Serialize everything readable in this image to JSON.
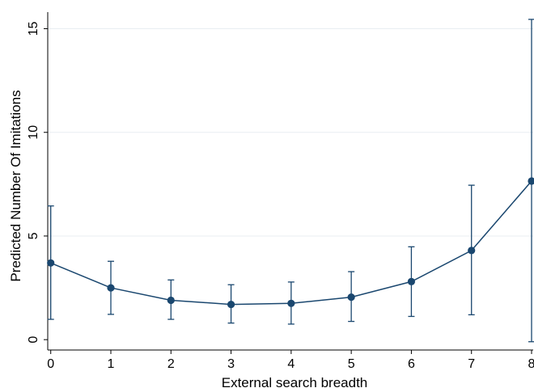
{
  "chart_data": {
    "type": "line",
    "xlabel": "External search breadth",
    "ylabel": "Predicted Number Of Imitations",
    "x": [
      0,
      1,
      2,
      3,
      4,
      5,
      6,
      7,
      8
    ],
    "xticks": [
      0,
      1,
      2,
      3,
      4,
      5,
      6,
      7,
      8
    ],
    "yticks": [
      0,
      5,
      10,
      15
    ],
    "xlim": [
      -0.05,
      8
    ],
    "ylim": [
      -0.5,
      15.8
    ],
    "grid": true,
    "series": [
      {
        "values": [
          3.7,
          2.5,
          1.9,
          1.7,
          1.75,
          2.05,
          2.8,
          4.3,
          7.65
        ],
        "lower": [
          0.98,
          1.22,
          0.98,
          0.8,
          0.75,
          0.88,
          1.12,
          1.2,
          -0.1
        ],
        "upper": [
          6.45,
          3.78,
          2.88,
          2.65,
          2.78,
          3.28,
          4.48,
          7.45,
          15.45
        ],
        "color": "#1a476f"
      }
    ]
  }
}
